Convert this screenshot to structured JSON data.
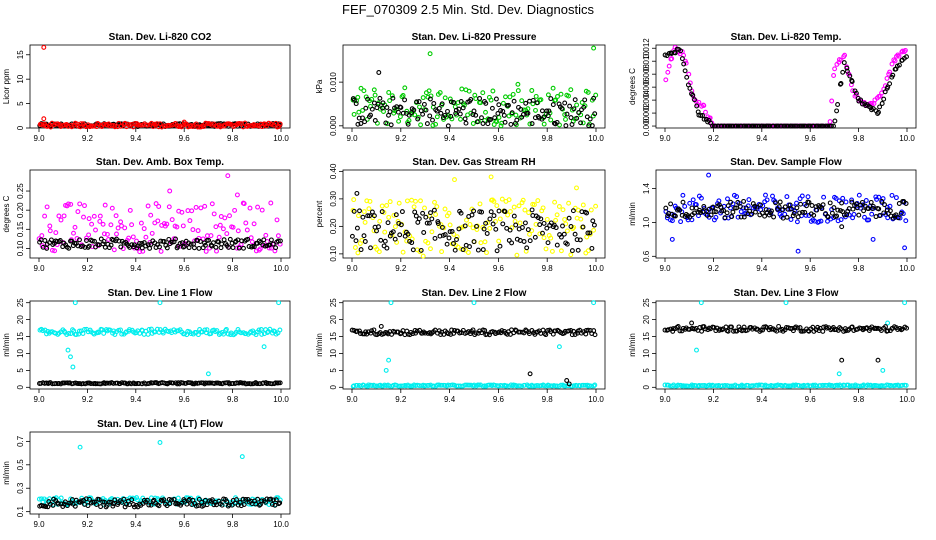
{
  "page": {
    "title": "FEF_070309  2.5 Min. Std. Dev. Diagnostics"
  },
  "chart_data": [
    {
      "type": "scatter",
      "title": "Stan. Dev. Li-820 CO2",
      "xlabel": "",
      "ylabel": "Licor ppm",
      "xlim": [
        9.0,
        10.0
      ],
      "ylim": [
        0,
        17
      ],
      "x_ticks": [
        "9.0",
        "9.2",
        "9.4",
        "9.6",
        "9.8",
        "10.0"
      ],
      "y_ticks": [
        "0",
        "5",
        "10",
        "15"
      ],
      "series": [
        {
          "name": "black",
          "color": "#000000",
          "band": [
            0.3,
            0.9
          ],
          "outliers": []
        },
        {
          "name": "red",
          "color": "#ff0000",
          "band": [
            0.2,
            1.0
          ],
          "outliers": [
            [
              9.02,
              16.5
            ],
            [
              9.02,
              1.9
            ],
            [
              9.6,
              1.2
            ]
          ]
        }
      ]
    },
    {
      "type": "scatter",
      "title": "Stan. Dev. Li-820 Pressure",
      "xlabel": "",
      "ylabel": "kPa",
      "xlim": [
        9.0,
        10.0
      ],
      "ylim": [
        -0.0005,
        0.0185
      ],
      "x_ticks": [
        "9.0",
        "9.2",
        "9.4",
        "9.6",
        "9.8",
        "10.0"
      ],
      "y_ticks": [
        "0.000",
        "0.010"
      ],
      "series": [
        {
          "name": "green",
          "color": "#00cc00",
          "band": [
            0.0,
            0.009
          ],
          "outliers": [
            [
              9.32,
              0.0165
            ],
            [
              9.99,
              0.0178
            ],
            [
              9.68,
              0.0095
            ]
          ]
        },
        {
          "name": "black",
          "color": "#000000",
          "band": [
            0.0,
            0.0065
          ],
          "outliers": [
            [
              9.11,
              0.0122
            ]
          ]
        }
      ]
    },
    {
      "type": "scatter",
      "title": "Stan. Dev. Li-820 Temp.",
      "xlabel": "",
      "ylabel": "degrees C",
      "xlim": [
        9.0,
        10.0
      ],
      "ylim": [
        -0.0003,
        0.0125
      ],
      "x_ticks": [
        "9.0",
        "9.2",
        "9.4",
        "9.6",
        "9.8",
        "10.0"
      ],
      "y_ticks": [
        "0.000",
        "0.002",
        "0.004",
        "0.006",
        "0.008",
        "0.010",
        "0.012"
      ],
      "series": [
        {
          "name": "magenta",
          "color": "#ff00ff",
          "profile": [
            [
              9.0,
              0.007
            ],
            [
              9.04,
              0.012
            ],
            [
              9.08,
              0.011
            ],
            [
              9.12,
              0.004
            ],
            [
              9.16,
              0.003
            ],
            [
              9.2,
              0
            ],
            [
              9.68,
              0
            ],
            [
              9.7,
              0.009
            ],
            [
              9.74,
              0.011
            ],
            [
              9.78,
              0.005
            ],
            [
              9.84,
              0.003
            ],
            [
              9.9,
              0.005
            ],
            [
              9.94,
              0.01
            ],
            [
              10.0,
              0.012
            ]
          ]
        },
        {
          "name": "black",
          "color": "#000000",
          "profile": [
            [
              9.02,
              0.011
            ],
            [
              9.06,
              0.012
            ],
            [
              9.1,
              0.006
            ],
            [
              9.14,
              0.002
            ],
            [
              9.2,
              0
            ],
            [
              9.7,
              0
            ],
            [
              9.74,
              0.01
            ],
            [
              9.8,
              0.004
            ],
            [
              9.88,
              0.002
            ],
            [
              9.94,
              0.008
            ],
            [
              10.0,
              0.011
            ]
          ]
        }
      ]
    },
    {
      "type": "scatter",
      "title": "Stan. Dev. Amb. Box Temp.",
      "xlabel": "",
      "ylabel": "degrees C",
      "xlim": [
        9.0,
        10.0
      ],
      "ylim": [
        0.075,
        0.305
      ],
      "x_ticks": [
        "9.0",
        "9.2",
        "9.4",
        "9.6",
        "9.8",
        "10.0"
      ],
      "y_ticks": [
        "0.10",
        "0.15",
        "0.20",
        "0.25"
      ],
      "series": [
        {
          "name": "magenta",
          "color": "#ff00ff",
          "band": [
            0.09,
            0.22
          ],
          "outliers": [
            [
              9.78,
              0.29
            ],
            [
              9.54,
              0.25
            ],
            [
              9.82,
              0.24
            ]
          ]
        },
        {
          "name": "black",
          "color": "#000000",
          "band": [
            0.1,
            0.125
          ],
          "outliers": []
        }
      ]
    },
    {
      "type": "scatter",
      "title": "Stan. Dev. Gas Stream RH",
      "xlabel": "",
      "ylabel": "percent",
      "xlim": [
        9.0,
        10.0
      ],
      "ylim": [
        0.085,
        0.405
      ],
      "x_ticks": [
        "9.0",
        "9.2",
        "9.4",
        "9.6",
        "9.8",
        "10.0"
      ],
      "y_ticks": [
        "0.10",
        "0.20",
        "0.30",
        "0.40"
      ],
      "series": [
        {
          "name": "yellow",
          "color": "#ffff00",
          "band": [
            0.09,
            0.3
          ],
          "outliers": [
            [
              9.42,
              0.37
            ],
            [
              9.57,
              0.38
            ],
            [
              9.92,
              0.34
            ]
          ]
        },
        {
          "name": "black",
          "color": "#000000",
          "band": [
            0.11,
            0.26
          ],
          "outliers": [
            [
              9.02,
              0.32
            ]
          ]
        }
      ]
    },
    {
      "type": "scatter",
      "title": "Stan. Dev. Sample Flow",
      "xlabel": "",
      "ylabel": "ml/min",
      "xlim": [
        9.0,
        10.0
      ],
      "ylim": [
        0.58,
        1.62
      ],
      "x_ticks": [
        "9.0",
        "9.2",
        "9.4",
        "9.6",
        "9.8",
        "10.0"
      ],
      "y_ticks": [
        "0.6",
        "1.0",
        "1.4"
      ],
      "series": [
        {
          "name": "blue",
          "color": "#0000ff",
          "band": [
            1.0,
            1.33
          ],
          "outliers": [
            [
              9.18,
              1.56
            ],
            [
              9.55,
              0.66
            ],
            [
              9.99,
              0.7
            ],
            [
              9.86,
              0.8
            ],
            [
              9.03,
              0.8
            ]
          ]
        },
        {
          "name": "black",
          "color": "#000000",
          "band": [
            1.05,
            1.25
          ],
          "outliers": [
            [
              9.73,
              0.95
            ]
          ]
        }
      ]
    },
    {
      "type": "scatter",
      "title": "Stan. Dev. Line 1 Flow",
      "xlabel": "",
      "ylabel": "ml/min",
      "xlim": [
        9.0,
        10.0
      ],
      "ylim": [
        -0.5,
        25.5
      ],
      "x_ticks": [
        "9.0",
        "9.2",
        "9.4",
        "9.6",
        "9.8",
        "10.0"
      ],
      "y_ticks": [
        "0",
        "5",
        "10",
        "15",
        "20",
        "25"
      ],
      "series": [
        {
          "name": "cyan",
          "color": "#00eeee",
          "band": [
            15.5,
            17.2
          ],
          "outliers": [
            [
              9.13,
              9
            ],
            [
              9.14,
              6
            ],
            [
              9.12,
              11
            ],
            [
              9.15,
              25
            ],
            [
              9.5,
              25
            ],
            [
              9.99,
              25
            ],
            [
              9.7,
              4
            ],
            [
              9.93,
              12
            ]
          ]
        },
        {
          "name": "black",
          "color": "#000000",
          "band": [
            1.0,
            1.4
          ],
          "outliers": []
        }
      ]
    },
    {
      "type": "scatter",
      "title": "Stan. Dev. Line 2 Flow",
      "xlabel": "",
      "ylabel": "ml/min",
      "xlim": [
        9.0,
        10.0
      ],
      "ylim": [
        -0.5,
        25.5
      ],
      "x_ticks": [
        "9.0",
        "9.2",
        "9.4",
        "9.6",
        "9.8",
        "10.0"
      ],
      "y_ticks": [
        "0",
        "5",
        "10",
        "15",
        "20",
        "25"
      ],
      "series": [
        {
          "name": "cyan",
          "color": "#00eeee",
          "band": [
            0.3,
            0.7
          ],
          "outliers": [
            [
              9.15,
              8
            ],
            [
              9.14,
              5
            ],
            [
              9.16,
              25
            ],
            [
              9.5,
              25
            ],
            [
              9.99,
              25
            ],
            [
              9.85,
              12
            ]
          ]
        },
        {
          "name": "black",
          "color": "#000000",
          "band": [
            15.5,
            17.0
          ],
          "outliers": [
            [
              9.73,
              4
            ],
            [
              9.88,
              2
            ],
            [
              9.89,
              1
            ],
            [
              9.12,
              18
            ]
          ]
        }
      ]
    },
    {
      "type": "scatter",
      "title": "Stan. Dev. Line 3 Flow",
      "xlabel": "",
      "ylabel": "ml/min",
      "xlim": [
        9.0,
        10.0
      ],
      "ylim": [
        -0.5,
        25.5
      ],
      "x_ticks": [
        "9.0",
        "9.2",
        "9.4",
        "9.6",
        "9.8",
        "10.0"
      ],
      "y_ticks": [
        "0",
        "5",
        "10",
        "15",
        "20",
        "25"
      ],
      "series": [
        {
          "name": "cyan",
          "color": "#00eeee",
          "band": [
            0.3,
            0.7
          ],
          "outliers": [
            [
              9.13,
              11
            ],
            [
              9.15,
              25
            ],
            [
              9.5,
              25
            ],
            [
              9.99,
              25
            ],
            [
              9.72,
              4
            ],
            [
              9.9,
              5
            ],
            [
              9.92,
              19
            ]
          ]
        },
        {
          "name": "black",
          "color": "#000000",
          "band": [
            16.5,
            18.0
          ],
          "outliers": [
            [
              9.73,
              8
            ],
            [
              9.88,
              8
            ],
            [
              9.11,
              19
            ]
          ]
        }
      ]
    },
    {
      "type": "scatter",
      "title": "Stan. Dev. Line 4 (LT) Flow",
      "xlabel": "",
      "ylabel": "ml/min",
      "xlim": [
        9.0,
        10.0
      ],
      "ylim": [
        0.08,
        0.78
      ],
      "x_ticks": [
        "9.0",
        "9.2",
        "9.4",
        "9.6",
        "9.8",
        "10.0"
      ],
      "y_ticks": [
        "0.1",
        "0.3",
        "0.5",
        "0.7"
      ],
      "series": [
        {
          "name": "cyan",
          "color": "#00eeee",
          "band": [
            0.16,
            0.22
          ],
          "outliers": [
            [
              9.17,
              0.65
            ],
            [
              9.5,
              0.69
            ],
            [
              9.84,
              0.57
            ]
          ]
        },
        {
          "name": "black",
          "color": "#000000",
          "band": [
            0.14,
            0.21
          ],
          "outliers": []
        }
      ]
    }
  ]
}
